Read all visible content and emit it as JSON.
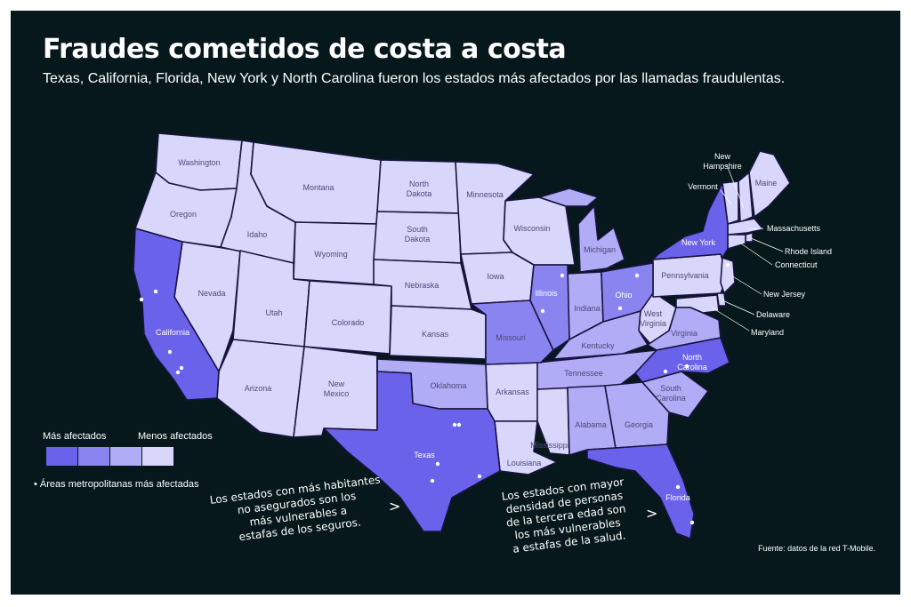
{
  "title": "Fraudes cometidos de costa a costa",
  "subtitle": "Texas, California, Florida, New York y North Carolina fueron los estados más afectados por las llamadas fraudulentas.",
  "colors": {
    "background": "#06181c",
    "level_1": "#6a62ea",
    "level_2": "#8a84f0",
    "level_3": "#b0acf5",
    "level_4": "#d8d6fb",
    "metro_dot": "#ffffff"
  },
  "legend": {
    "high_label": "Más afectados",
    "low_label": "Menos afectados",
    "levels": [
      "#6a62ea",
      "#8a84f0",
      "#b0acf5",
      "#d8d6fb"
    ],
    "metro_label": "• Áreas metropolitanas más afectadas"
  },
  "states": {
    "washington": "Washington",
    "oregon": "Oregon",
    "california": "California",
    "nevada": "Nevada",
    "idaho": "Idaho",
    "montana": "Montana",
    "wyoming": "Wyoming",
    "utah": "Utah",
    "arizona": "Arizona",
    "colorado": "Colorado",
    "new_mexico_1": "New",
    "new_mexico_2": "Mexico",
    "north_dakota_1": "North",
    "north_dakota_2": "Dakota",
    "south_dakota_1": "South",
    "south_dakota_2": "Dakota",
    "nebraska": "Nebraska",
    "kansas": "Kansas",
    "oklahoma": "Oklahoma",
    "texas": "Texas",
    "minnesota": "Minnesota",
    "iowa": "Iowa",
    "missouri": "Missouri",
    "arkansas": "Arkansas",
    "louisiana": "Louisiana",
    "wisconsin": "Wisconsin",
    "illinois": "Illinois",
    "michigan": "Michigan",
    "indiana": "Indiana",
    "ohio": "Ohio",
    "kentucky": "Kentucky",
    "tennessee": "Tennessee",
    "mississippi": "Mississippi",
    "alabama": "Alabama",
    "georgia": "Georgia",
    "florida": "Florida",
    "south_carolina_1": "South",
    "south_carolina_2": "Carolina",
    "north_carolina_1": "North",
    "north_carolina_2": "Carolina",
    "virginia": "Virginia",
    "west_virginia_1": "West",
    "west_virginia_2": "Virginia",
    "pennsylvania": "Pennsylvania",
    "new_york": "New York",
    "maine": "Maine",
    "new_hampshire_1": "New",
    "new_hampshire_2": "Hampshire",
    "vermont": "Vermont",
    "massachusetts": "Massachusetts",
    "rhode_island": "Rhode Island",
    "connecticut": "Connecticut",
    "new_jersey": "New Jersey",
    "delaware": "Delaware",
    "maryland": "Maryland"
  },
  "notes": {
    "uninsured": [
      "Los estados con más habitantes",
      "no asegurados son los",
      "más vulnerables a",
      "estafas de los seguros."
    ],
    "elderly": [
      "Los estados con mayor",
      "densidad de personas",
      "de la tercera edad son",
      "los más vulnerables",
      "a estafas de la salud."
    ],
    "arrow": ">"
  },
  "source": "Fuente: datos de la red T-Mobile."
}
